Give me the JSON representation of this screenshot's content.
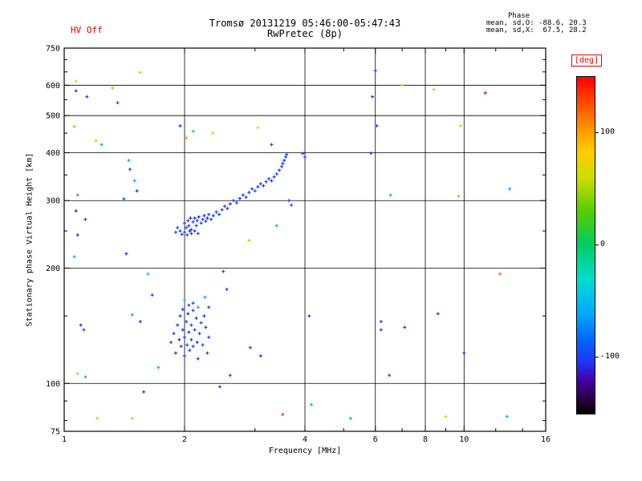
{
  "header": {
    "hv_status": "HV Off",
    "title": "Tromsø 20131219 05:46:00-05:47:43",
    "subtitle": "RwPretec (8p)",
    "stats_title": "Phase",
    "stats_line_o": "mean, sd,O: -88.6, 20.3",
    "stats_line_x": "mean, sd,X:  67.5, 28.2"
  },
  "colors": {
    "accent_red": "#dd0000",
    "axis": "#000000",
    "background": "#ffffff"
  },
  "colorbar": {
    "label": "[deg]",
    "ticks": [
      100,
      0,
      -100
    ],
    "range": [
      -150,
      150
    ],
    "stops": [
      [
        0,
        "#000000"
      ],
      [
        0.05,
        "#30004a"
      ],
      [
        0.1,
        "#4400aa"
      ],
      [
        0.15,
        "#2233ee"
      ],
      [
        0.22,
        "#0066ff"
      ],
      [
        0.3,
        "#00aaff"
      ],
      [
        0.4,
        "#00ddcc"
      ],
      [
        0.5,
        "#00cc66"
      ],
      [
        0.6,
        "#55cc00"
      ],
      [
        0.7,
        "#ccdd00"
      ],
      [
        0.78,
        "#ffcc00"
      ],
      [
        0.86,
        "#ff8800"
      ],
      [
        0.93,
        "#ff4400"
      ],
      [
        1,
        "#ff0000"
      ]
    ]
  },
  "chart_data": {
    "type": "scatter",
    "title": "Tromsø 20131219 05:46:00-05:47:43",
    "subtitle": "RwPretec (8p)",
    "xlabel": "Frequency [MHz]",
    "ylabel": "Stationary phase Virtual Height [km]",
    "xscale": "log",
    "yscale": "log",
    "xlim": [
      1,
      16
    ],
    "ylim": [
      75,
      750
    ],
    "x_ticks": [
      1,
      2,
      4,
      6,
      8,
      10,
      16
    ],
    "y_ticks": [
      75,
      100,
      200,
      300,
      400,
      500,
      600,
      750
    ],
    "x_minor_ticks": [
      3,
      5,
      7,
      9,
      12,
      14
    ],
    "y_minor_ticks": [
      80,
      90,
      150,
      250,
      350,
      450,
      550,
      650,
      700
    ],
    "grid_x": [
      2,
      4,
      6,
      8,
      10
    ],
    "grid_y": [
      100,
      200,
      300,
      400,
      500,
      600
    ],
    "marker": "cross",
    "colorbar_label": "[deg]",
    "point_fields": [
      "frequency_mhz",
      "virtual_height_km",
      "phase_deg"
    ],
    "points": [
      [
        2.0,
        262,
        -100
      ],
      [
        2.02,
        255,
        -95
      ],
      [
        2.04,
        266,
        -105
      ],
      [
        2.05,
        258,
        -100
      ],
      [
        2.07,
        270,
        -110
      ],
      [
        2.08,
        252,
        -95
      ],
      [
        2.1,
        264,
        -100
      ],
      [
        2.12,
        270,
        -105
      ],
      [
        2.14,
        258,
        -95
      ],
      [
        2.15,
        266,
        -100
      ],
      [
        2.17,
        272,
        -110
      ],
      [
        2.2,
        262,
        -100
      ],
      [
        2.22,
        268,
        -95
      ],
      [
        2.24,
        274,
        -105
      ],
      [
        2.26,
        265,
        -100
      ],
      [
        2.28,
        270,
        -110
      ],
      [
        2.3,
        276,
        -100
      ],
      [
        2.33,
        268,
        -95
      ],
      [
        2.36,
        274,
        -100
      ],
      [
        2.4,
        280,
        -105
      ],
      [
        2.44,
        276,
        -100
      ],
      [
        2.48,
        284,
        -95
      ],
      [
        2.52,
        290,
        -105
      ],
      [
        2.56,
        286,
        -100
      ],
      [
        2.6,
        294,
        -110
      ],
      [
        2.65,
        300,
        -100
      ],
      [
        2.7,
        296,
        -95
      ],
      [
        2.75,
        304,
        -105
      ],
      [
        2.8,
        310,
        -100
      ],
      [
        2.85,
        306,
        -95
      ],
      [
        2.9,
        315,
        -105
      ],
      [
        2.95,
        322,
        -100
      ],
      [
        3.0,
        318,
        -95
      ],
      [
        3.05,
        326,
        -105
      ],
      [
        3.1,
        332,
        -100
      ],
      [
        3.15,
        328,
        -110
      ],
      [
        3.2,
        336,
        -100
      ],
      [
        3.25,
        342,
        -95
      ],
      [
        3.3,
        338,
        -105
      ],
      [
        3.35,
        346,
        -100
      ],
      [
        3.4,
        352,
        -95
      ],
      [
        3.45,
        360,
        -105
      ],
      [
        3.5,
        368,
        -100
      ],
      [
        3.52,
        375,
        -95
      ],
      [
        3.55,
        382,
        -105
      ],
      [
        3.58,
        390,
        -100
      ],
      [
        3.6,
        396,
        -95
      ],
      [
        1.95,
        250,
        -100
      ],
      [
        1.97,
        245,
        -105
      ],
      [
        2.0,
        248,
        -95
      ],
      [
        2.03,
        244,
        -100
      ],
      [
        2.06,
        250,
        -110
      ],
      [
        2.08,
        246,
        -100
      ],
      [
        1.92,
        255,
        -95
      ],
      [
        1.9,
        248,
        -100
      ],
      [
        2.12,
        250,
        -105
      ],
      [
        2.16,
        246,
        -100
      ],
      [
        1.85,
        128,
        -100
      ],
      [
        1.88,
        135,
        -95
      ],
      [
        1.9,
        120,
        -105
      ],
      [
        1.92,
        142,
        -100
      ],
      [
        1.94,
        130,
        -110
      ],
      [
        1.95,
        150,
        -100
      ],
      [
        1.96,
        125,
        -95
      ],
      [
        1.98,
        138,
        -100
      ],
      [
        2.0,
        118,
        -105
      ],
      [
        2.0,
        132,
        -100
      ],
      [
        2.02,
        145,
        -95
      ],
      [
        2.03,
        126,
        -100
      ],
      [
        2.04,
        152,
        -110
      ],
      [
        2.05,
        136,
        -100
      ],
      [
        2.06,
        122,
        -95
      ],
      [
        2.08,
        142,
        -100
      ],
      [
        2.08,
        130,
        -105
      ],
      [
        2.1,
        155,
        -100
      ],
      [
        2.1,
        125,
        -95
      ],
      [
        2.12,
        138,
        -100
      ],
      [
        2.14,
        148,
        -105
      ],
      [
        2.15,
        128,
        -100
      ],
      [
        2.16,
        158,
        -60
      ],
      [
        2.18,
        135,
        -100
      ],
      [
        2.2,
        144,
        -95
      ],
      [
        2.22,
        126,
        -100
      ],
      [
        2.24,
        150,
        -105
      ],
      [
        2.26,
        140,
        -100
      ],
      [
        2.3,
        132,
        -95
      ],
      [
        2.1,
        162,
        -100
      ],
      [
        2.05,
        160,
        -105
      ],
      [
        1.98,
        156,
        -100
      ],
      [
        2.28,
        120,
        -95
      ],
      [
        2.16,
        116,
        -100
      ],
      [
        2.0,
        165,
        -60
      ],
      [
        1.07,
        615,
        60
      ],
      [
        1.07,
        580,
        -100
      ],
      [
        1.14,
        560,
        -95
      ],
      [
        1.06,
        468,
        100
      ],
      [
        1.2,
        430,
        55
      ],
      [
        1.24,
        420,
        10
      ],
      [
        1.08,
        310,
        -55
      ],
      [
        1.07,
        282,
        -100
      ],
      [
        1.08,
        244,
        -105
      ],
      [
        1.13,
        268,
        -100
      ],
      [
        1.06,
        214,
        -60
      ],
      [
        1.1,
        142,
        -100
      ],
      [
        1.12,
        138,
        -95
      ],
      [
        1.08,
        106,
        95
      ],
      [
        1.13,
        104,
        -55
      ],
      [
        1.21,
        81,
        55
      ],
      [
        1.32,
        590,
        100
      ],
      [
        1.36,
        540,
        -100
      ],
      [
        1.55,
        648,
        95
      ],
      [
        1.45,
        382,
        -55
      ],
      [
        1.46,
        362,
        -100
      ],
      [
        1.41,
        303,
        -95
      ],
      [
        1.5,
        338,
        -60
      ],
      [
        1.52,
        318,
        -100
      ],
      [
        1.43,
        218,
        -105
      ],
      [
        1.62,
        193,
        -55
      ],
      [
        1.48,
        151,
        -60
      ],
      [
        1.55,
        145,
        -100
      ],
      [
        1.66,
        170,
        -95
      ],
      [
        1.48,
        81,
        55
      ],
      [
        1.72,
        110,
        10
      ],
      [
        1.58,
        95,
        -100
      ],
      [
        2.25,
        168,
        -60
      ],
      [
        2.3,
        158,
        -100
      ],
      [
        2.5,
        196,
        -100
      ],
      [
        2.55,
        176,
        -95
      ],
      [
        2.9,
        236,
        55
      ],
      [
        3.05,
        465,
        60
      ],
      [
        3.4,
        258,
        5
      ],
      [
        3.3,
        420,
        -100
      ],
      [
        3.65,
        300,
        -100
      ],
      [
        3.7,
        292,
        -95
      ],
      [
        4.15,
        88,
        -60
      ],
      [
        3.52,
        83,
        130
      ],
      [
        2.92,
        124,
        -100
      ],
      [
        3.1,
        118,
        -95
      ],
      [
        4.1,
        150,
        -100
      ],
      [
        4.0,
        390,
        -100
      ],
      [
        3.95,
        398,
        -95
      ],
      [
        2.02,
        437,
        100
      ],
      [
        2.35,
        450,
        60
      ],
      [
        2.1,
        455,
        -10
      ],
      [
        1.95,
        470,
        -100
      ],
      [
        2.6,
        105,
        -100
      ],
      [
        2.45,
        98,
        -95
      ],
      [
        5.2,
        81,
        -55
      ],
      [
        5.85,
        399,
        -100
      ],
      [
        6.0,
        655,
        -100
      ],
      [
        6.55,
        310,
        5
      ],
      [
        6.2,
        145,
        -100
      ],
      [
        6.2,
        138,
        -95
      ],
      [
        7.1,
        140,
        -100
      ],
      [
        8.4,
        585,
        60
      ],
      [
        9.8,
        470,
        55
      ],
      [
        9.7,
        308,
        100
      ],
      [
        8.6,
        152,
        -100
      ],
      [
        11.3,
        573,
        160
      ],
      [
        12.3,
        193,
        120
      ],
      [
        13.0,
        322,
        -60
      ],
      [
        10.0,
        120,
        -100
      ],
      [
        6.05,
        470,
        -95
      ],
      [
        6.5,
        105,
        -100
      ],
      [
        5.9,
        560,
        -100
      ],
      [
        7.0,
        600,
        55
      ],
      [
        12.8,
        82,
        -55
      ],
      [
        9.0,
        82,
        60
      ]
    ]
  }
}
